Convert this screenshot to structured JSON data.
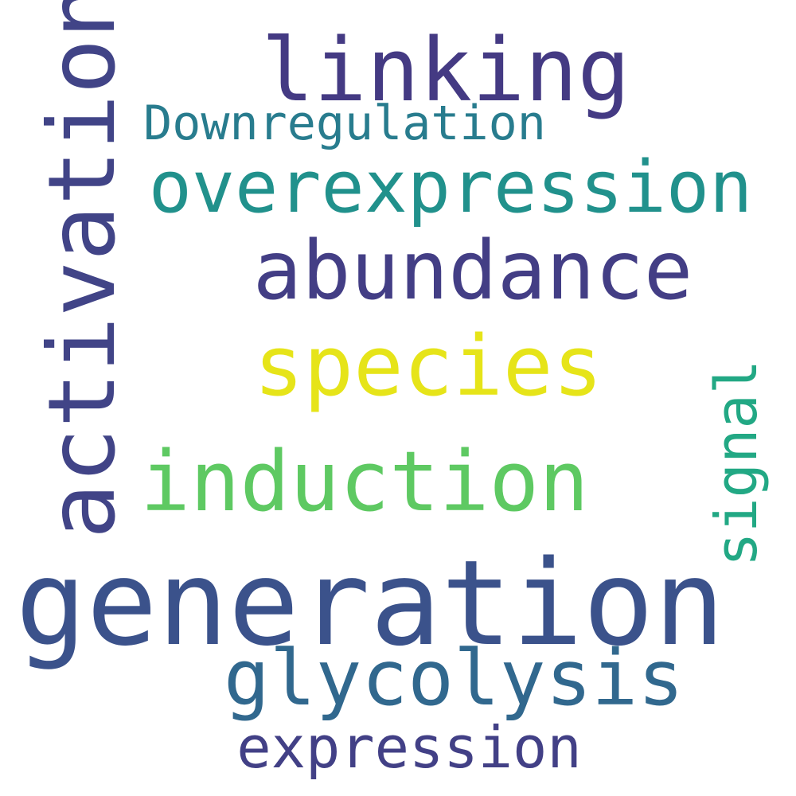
{
  "words": [
    {
      "key": "generation",
      "text": "generation",
      "color": "#3b528b"
    },
    {
      "key": "activation",
      "text": "activation",
      "color": "#414487"
    },
    {
      "key": "linking",
      "text": "linking",
      "color": "#443a83"
    },
    {
      "key": "overexpression",
      "text": "overexpression",
      "color": "#21918c"
    },
    {
      "key": "abundance",
      "text": "abundance",
      "color": "#433e85"
    },
    {
      "key": "species",
      "text": "species",
      "color": "#e6e419"
    },
    {
      "key": "induction",
      "text": "induction",
      "color": "#5ec962"
    },
    {
      "key": "glycolysis",
      "text": "glycolysis",
      "color": "#31688e"
    },
    {
      "key": "downregulation",
      "text": "Downregulation",
      "color": "#287c8e"
    },
    {
      "key": "signal",
      "text": "signal",
      "color": "#22a884"
    },
    {
      "key": "expression",
      "text": "expression",
      "color": "#424086"
    }
  ]
}
